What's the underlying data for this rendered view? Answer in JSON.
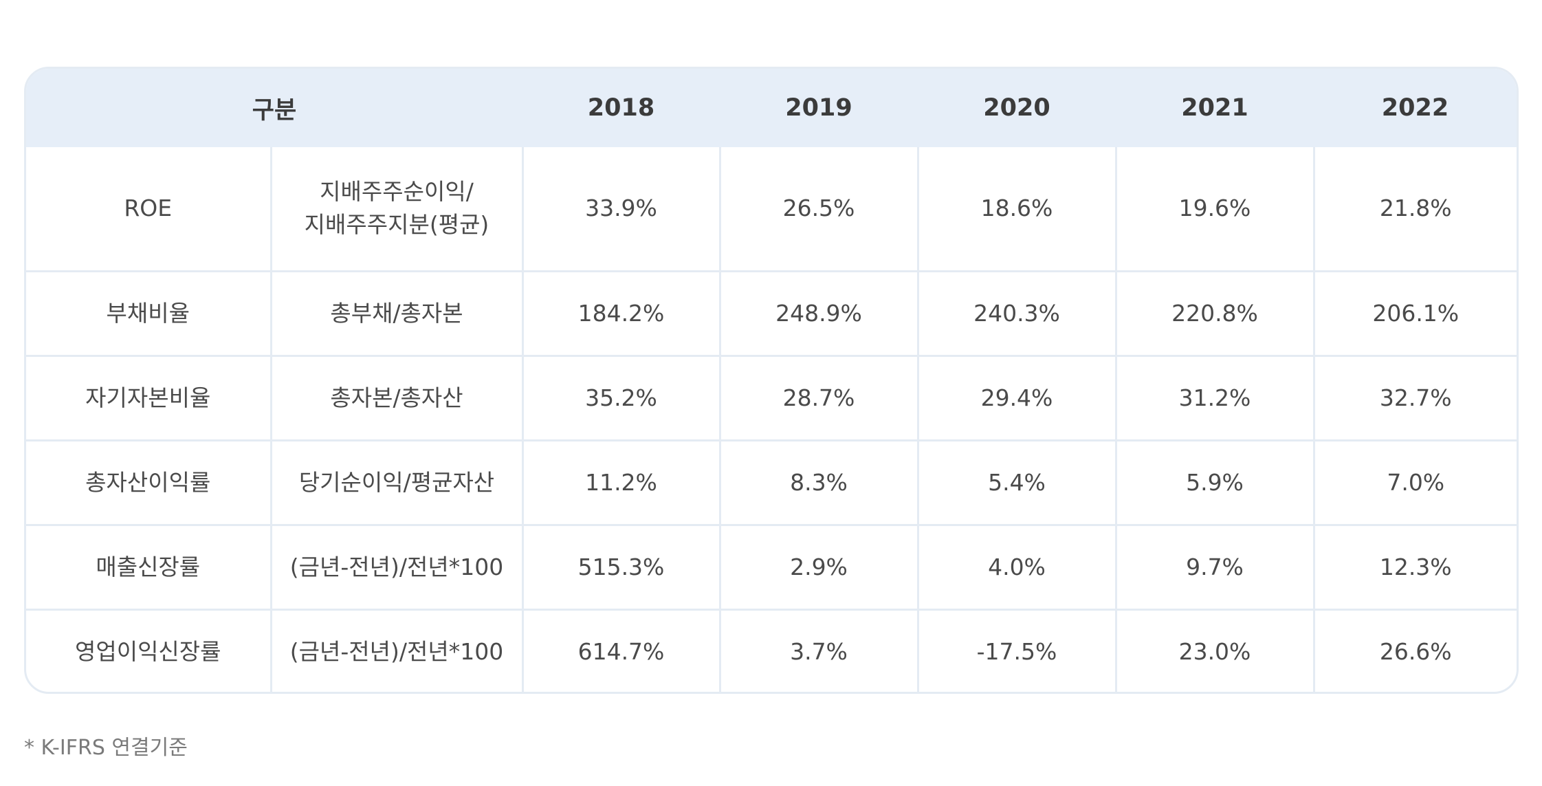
{
  "table": {
    "header": {
      "category": "구분",
      "years": [
        "2018",
        "2019",
        "2020",
        "2021",
        "2022"
      ]
    },
    "rows": [
      {
        "name": "ROE",
        "formula_line1": "지배주주순이익/",
        "formula_line2": "지배주주지분(평균)",
        "values": [
          "33.9%",
          "26.5%",
          "18.6%",
          "19.6%",
          "21.8%"
        ]
      },
      {
        "name": "부채비율",
        "formula_line1": "총부채/총자본",
        "values": [
          "184.2%",
          "248.9%",
          "240.3%",
          "220.8%",
          "206.1%"
        ]
      },
      {
        "name": "자기자본비율",
        "formula_line1": "총자본/총자산",
        "values": [
          "35.2%",
          "28.7%",
          "29.4%",
          "31.2%",
          "32.7%"
        ]
      },
      {
        "name": "총자산이익률",
        "formula_line1": "당기순이익/평균자산",
        "values": [
          "11.2%",
          "8.3%",
          "5.4%",
          "5.9%",
          "7.0%"
        ]
      },
      {
        "name": "매출신장률",
        "formula_line1": "(금년-전년)/전년*100",
        "values": [
          "515.3%",
          "2.9%",
          "4.0%",
          "9.7%",
          "12.3%"
        ]
      },
      {
        "name": "영업이익신장률",
        "formula_line1": "(금년-전년)/전년*100",
        "values": [
          "614.7%",
          "3.7%",
          "-17.5%",
          "23.0%",
          "26.6%"
        ]
      }
    ]
  },
  "footnote": "* K-IFRS 연결기준",
  "colors": {
    "header_bg": "#e6eef8",
    "border": "#e4ebf3",
    "text": "#4a4a4a"
  }
}
